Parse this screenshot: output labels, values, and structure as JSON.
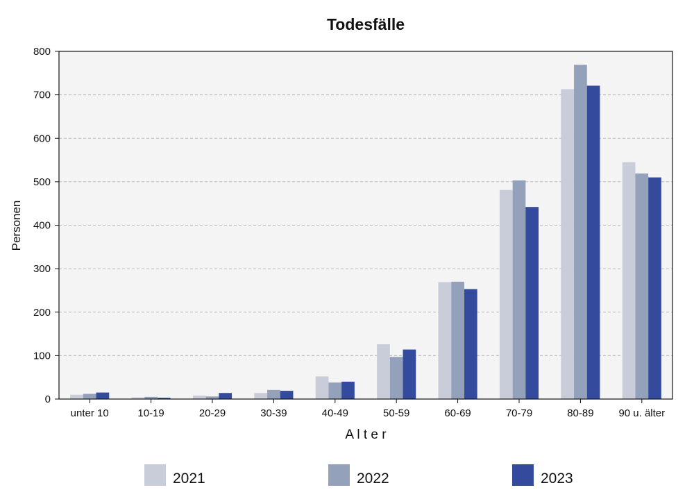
{
  "chart_data": {
    "type": "bar",
    "title": "Todesfälle",
    "xlabel": "A l t e r",
    "ylabel": "Personen",
    "ylim": [
      0,
      800
    ],
    "yticks": [
      0,
      100,
      200,
      300,
      400,
      500,
      600,
      700,
      800
    ],
    "grid": true,
    "legend_position": "bottom",
    "categories": [
      "unter 10",
      "10-19",
      "20-29",
      "30-39",
      "40-49",
      "50-59",
      "60-69",
      "70-79",
      "80-89",
      "90 u. älter"
    ],
    "series": [
      {
        "name": "2021",
        "color": "#c8cdd9",
        "values": [
          10,
          4,
          8,
          14,
          52,
          126,
          269,
          481,
          713,
          545
        ]
      },
      {
        "name": "2022",
        "color": "#94a1ba",
        "values": [
          12,
          5,
          6,
          21,
          38,
          97,
          270,
          503,
          769,
          519
        ]
      },
      {
        "name": "2023",
        "color": "#344a9c",
        "values": [
          15,
          3,
          14,
          19,
          40,
          114,
          253,
          442,
          721,
          510
        ]
      }
    ],
    "plot_background": "#f4f4f4"
  }
}
